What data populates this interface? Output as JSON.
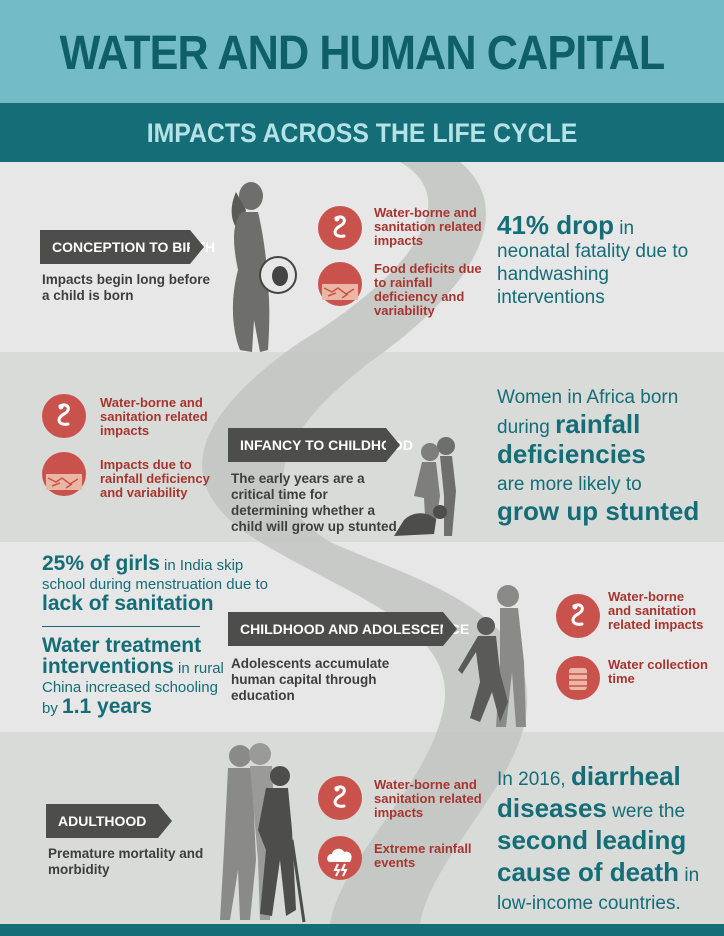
{
  "header": {
    "title": "WATER AND HUMAN CAPITAL",
    "subtitle": "IMPACTS ACROSS THE LIFE CYCLE"
  },
  "colors": {
    "dark_teal": "#146d77",
    "light_teal": "#74bcc5",
    "icon_red": "#c9534c",
    "label_red": "#a7352f",
    "tag_gray": "#4d4d4b"
  },
  "stages": [
    {
      "tag": "CONCEPTION TO BIRTH",
      "description": "Impacts begin long before a child is born",
      "impacts": [
        {
          "icon": "worm-icon",
          "label": "Water-borne and sanitation related impacts"
        },
        {
          "icon": "cracked-earth-icon",
          "label": "Food deficits due to rainfall deficiency and variability"
        }
      ],
      "stat": {
        "bold": "41% drop",
        "text1": " in",
        "text2": "neonatal fatality due to handwashing interventions"
      }
    },
    {
      "tag": "INFANCY TO CHILDHOOD",
      "description": "The early years are a critical time for determining whether a child will grow up stunted",
      "impacts": [
        {
          "icon": "worm-icon",
          "label": "Water-borne and sanitation related impacts"
        },
        {
          "icon": "cracked-earth-icon",
          "label": "Impacts due to rainfall deficiency and variability"
        }
      ],
      "stat": {
        "p1": "Women in Africa born",
        "p2": "during ",
        "bold1": "rainfall",
        "bold2": "deficiencies",
        "p3": "are more likely to",
        "bold3": "grow up stunted"
      }
    },
    {
      "tag": "CHILDHOOD AND ADOLESCENCE",
      "description": "Adolescents accumulate human capital through education",
      "impacts": [
        {
          "icon": "worm-icon",
          "label": "Water-borne and sanitation related impacts"
        },
        {
          "icon": "water-barrel-icon",
          "label": "Water collection time"
        }
      ],
      "stat1": {
        "bold1": "25% of girls",
        "t1": " in India skip",
        "t2": "school during menstruation due to",
        "bold2": "lack of sanitation"
      },
      "stat2": {
        "bold1": "Water treatment",
        "bold2": "interventions",
        "t1": " in rural",
        "t2": "China increased schooling",
        "t3": "by ",
        "bold3": "1.1 years"
      }
    },
    {
      "tag": "ADULTHOOD",
      "description": "Premature mortality and morbidity",
      "impacts": [
        {
          "icon": "worm-icon",
          "label": "Water-borne and sanitation related impacts"
        },
        {
          "icon": "storm-cloud-icon",
          "label": "Extreme rainfall events"
        }
      ],
      "stat": {
        "t1": "In 2016, ",
        "bold1": "diarrheal",
        "bold2": "diseases",
        "t2": " were the",
        "bold3": "second leading",
        "bold4": "cause of death",
        "t3": " in",
        "t4": "low-income countries."
      }
    }
  ]
}
